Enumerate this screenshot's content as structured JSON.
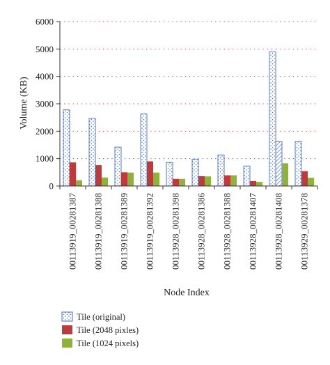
{
  "chart_data": {
    "type": "bar",
    "title": "",
    "xlabel": "Node Index",
    "ylabel": "Volume (KB)",
    "ylim": [
      0,
      6000
    ],
    "yticks": [
      0,
      1000,
      2000,
      3000,
      4000,
      5000,
      6000
    ],
    "grid": "horizontal dotted",
    "legend_position": "bottom-left",
    "categories": [
      "00113919_00281387",
      "00113919_00281388",
      "00113919_00281389",
      "00113919_00281392",
      "00113928_00281398",
      "00113928_00281386",
      "00113928_00281388",
      "00113928_00281407",
      "00113928_00281408",
      "00113929_00281378"
    ],
    "series": [
      {
        "name": "Tile (original)",
        "values": [
          2780,
          2470,
          1420,
          2630,
          860,
          980,
          1130,
          730,
          4900,
          1620
        ],
        "color": "#4a6fc4",
        "fill": "dotted"
      },
      {
        "name": "Tile (2048 pixles)",
        "values": [
          860,
          760,
          500,
          900,
          260,
          360,
          390,
          180,
          1620,
          540
        ],
        "color": "#c0393b",
        "fill": "solid"
      },
      {
        "name": "Tile (1024 pixels)",
        "values": [
          210,
          310,
          490,
          490,
          260,
          350,
          390,
          150,
          830,
          300
        ],
        "color": "#8db33a",
        "fill": "solid"
      }
    ],
    "highlighted_bar": {
      "category_index": 8,
      "series_index": 1,
      "fill": "hatched"
    }
  }
}
